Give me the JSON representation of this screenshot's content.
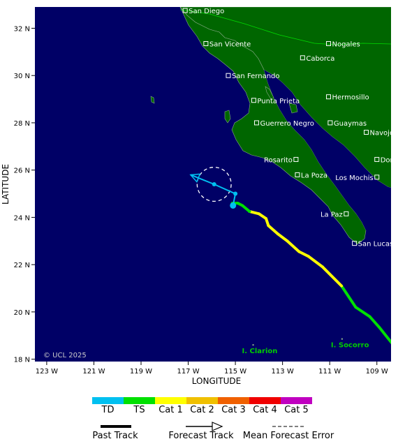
{
  "map": {
    "x_axis": {
      "title": "LONGITUDE",
      "ticks": [
        {
          "value": -123,
          "label": "123 W"
        },
        {
          "value": -121,
          "label": "121 W"
        },
        {
          "value": -119,
          "label": "119 W"
        },
        {
          "value": -117,
          "label": "117 W"
        },
        {
          "value": -115,
          "label": "115 W"
        },
        {
          "value": -113,
          "label": "113 W"
        },
        {
          "value": -111,
          "label": "111 W"
        },
        {
          "value": -109,
          "label": "109 W"
        }
      ]
    },
    "y_axis": {
      "title": "LATITUDE",
      "ticks": [
        {
          "value": 32,
          "label": "32 N"
        },
        {
          "value": 30,
          "label": "30 N"
        },
        {
          "value": 28,
          "label": "28 N"
        },
        {
          "value": 26,
          "label": "26 N"
        },
        {
          "value": 24,
          "label": "24 N"
        },
        {
          "value": 22,
          "label": "22 N"
        },
        {
          "value": 20,
          "label": "20 N"
        },
        {
          "value": 18,
          "label": "18 N"
        }
      ]
    },
    "extent": {
      "lon_min": -123.5,
      "lon_max": -108.4,
      "lat_min": 17.9,
      "lat_max": 32.9
    },
    "colors": {
      "ocean": "#000066",
      "land": "#006600",
      "border": "#00dd00"
    },
    "cities": [
      {
        "name": "San Diego",
        "lon": -117.13,
        "lat": 32.75
      },
      {
        "name": "San Vicente",
        "lon": -116.25,
        "lat": 31.35
      },
      {
        "name": "Nogales",
        "lon": -111.05,
        "lat": 31.35
      },
      {
        "name": "Caborca",
        "lon": -112.15,
        "lat": 30.75
      },
      {
        "name": "San Fernando",
        "lon": -115.3,
        "lat": 30.0
      },
      {
        "name": "Punta Prieta",
        "lon": -114.22,
        "lat": 28.95
      },
      {
        "name": "Hermosillo",
        "lon": -111.05,
        "lat": 29.1
      },
      {
        "name": "Guerrero Negro",
        "lon": -114.1,
        "lat": 28.0
      },
      {
        "name": "Guaymas",
        "lon": -110.98,
        "lat": 28.0
      },
      {
        "name": "Navojoa",
        "lon": -109.45,
        "lat": 27.6
      },
      {
        "name": "Rosarito",
        "lon": -112.43,
        "lat": 26.45,
        "align": "left"
      },
      {
        "name": "Don",
        "lon": -109.0,
        "lat": 26.45
      },
      {
        "name": "La Poza",
        "lon": -112.37,
        "lat": 25.8
      },
      {
        "name": "Los Mochis",
        "lon": -109.0,
        "lat": 25.7,
        "align": "left"
      },
      {
        "name": "La Paz",
        "lon": -110.3,
        "lat": 24.15,
        "align": "left"
      },
      {
        "name": "San Lucas",
        "lon": -109.95,
        "lat": 22.9
      }
    ],
    "islands": [
      {
        "name": "I. Clarion",
        "lon": -114.72,
        "lat": 18.25
      },
      {
        "name": "I. Socorro",
        "lon": -110.95,
        "lat": 18.5
      }
    ],
    "copyright": "© UCL 2025"
  },
  "storm": {
    "past_track": [
      {
        "lon": -108.3,
        "lat": 18.6,
        "cat": "TS"
      },
      {
        "lon": -108.9,
        "lat": 19.35,
        "cat": "TS"
      },
      {
        "lon": -109.3,
        "lat": 19.8,
        "cat": "TS"
      },
      {
        "lon": -109.9,
        "lat": 20.2,
        "cat": "TS"
      },
      {
        "lon": -110.3,
        "lat": 20.8,
        "cat": "TS"
      },
      {
        "lon": -110.5,
        "lat": 21.1,
        "cat": "Cat 1"
      },
      {
        "lon": -111.3,
        "lat": 21.9,
        "cat": "Cat 1"
      },
      {
        "lon": -111.9,
        "lat": 22.35,
        "cat": "Cat 1"
      },
      {
        "lon": -112.3,
        "lat": 22.55,
        "cat": "Cat 1"
      },
      {
        "lon": -112.8,
        "lat": 23.0,
        "cat": "Cat 1"
      },
      {
        "lon": -113.2,
        "lat": 23.3,
        "cat": "Cat 1"
      },
      {
        "lon": -113.6,
        "lat": 23.65,
        "cat": "Cat 1"
      },
      {
        "lon": -113.7,
        "lat": 23.95,
        "cat": "Cat 1"
      },
      {
        "lon": -114.0,
        "lat": 24.15,
        "cat": "Cat 1"
      },
      {
        "lon": -114.4,
        "lat": 24.25,
        "cat": "TS"
      },
      {
        "lon": -114.7,
        "lat": 24.5,
        "cat": "TS"
      },
      {
        "lon": -114.9,
        "lat": 24.6,
        "cat": "TS"
      },
      {
        "lon": -115.13,
        "lat": 24.6,
        "cat": "TS"
      }
    ],
    "current_position": {
      "lon": -115.1,
      "lat": 24.5
    },
    "forecast_track": [
      {
        "lon": -115.1,
        "lat": 24.5
      },
      {
        "lon": -115.0,
        "lat": 25.0
      },
      {
        "lon": -115.9,
        "lat": 25.4
      },
      {
        "lon": -116.9,
        "lat": 25.8
      }
    ],
    "forecast_error": {
      "lon": -115.9,
      "lat": 25.4,
      "radius_deg": 0.72
    }
  },
  "legend": {
    "categories": [
      {
        "label": "TD",
        "color": "#00c0f0"
      },
      {
        "label": "TS",
        "color": "#00e000"
      },
      {
        "label": "Cat 1",
        "color": "#ffff00"
      },
      {
        "label": "Cat 2",
        "color": "#f0c000"
      },
      {
        "label": "Cat 3",
        "color": "#f06000"
      },
      {
        "label": "Cat 4",
        "color": "#f00000"
      },
      {
        "label": "Cat 5",
        "color": "#c000c0"
      }
    ],
    "past_track_label": "Past Track",
    "forecast_track_label": "Forecast Track",
    "mean_error_label": "Mean Forecast Error"
  }
}
